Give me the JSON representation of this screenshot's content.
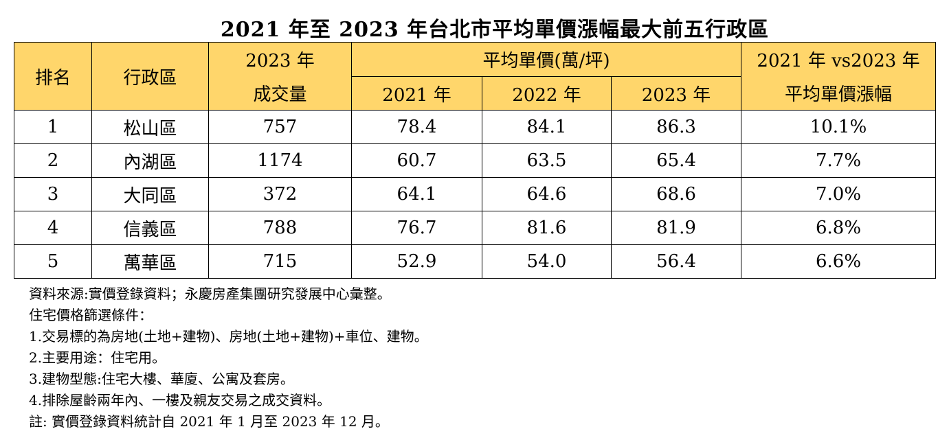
{
  "title": "2021 年至 2023 年台北市平均單價漲幅最大前五行政區",
  "headers": {
    "rank": "排名",
    "district": "行政區",
    "volume_line1": "2023 年",
    "volume_line2": "成交量",
    "price_group": "平均單價(萬/坪)",
    "year_2021": "2021 年",
    "year_2022": "2022 年",
    "year_2023": "2023 年",
    "growth_line1": "2021 年 vs2023 年",
    "growth_line2": "平均單價漲幅"
  },
  "rows": [
    {
      "rank": "1",
      "district": "松山區",
      "volume": "757",
      "p2021": "78.4",
      "p2022": "84.1",
      "p2023": "86.3",
      "growth": "10.1%"
    },
    {
      "rank": "2",
      "district": "內湖區",
      "volume": "1174",
      "p2021": "60.7",
      "p2022": "63.5",
      "p2023": "65.4",
      "growth": "7.7%"
    },
    {
      "rank": "3",
      "district": "大同區",
      "volume": "372",
      "p2021": "64.1",
      "p2022": "64.6",
      "p2023": "68.6",
      "growth": "7.0%"
    },
    {
      "rank": "4",
      "district": "信義區",
      "volume": "788",
      "p2021": "76.7",
      "p2022": "81.6",
      "p2023": "81.9",
      "growth": "6.8%"
    },
    {
      "rank": "5",
      "district": "萬華區",
      "volume": "715",
      "p2021": "52.9",
      "p2022": "54.0",
      "p2023": "56.4",
      "growth": "6.6%"
    }
  ],
  "notes": [
    "資料來源:實價登錄資料；永慶房產集團研究發展中心彙整。",
    "住宅價格篩選條件：",
    "1.交易標的為房地(土地+建物)、房地(土地+建物)+車位、建物。",
    "2.主要用途：住宅用。",
    "3.建物型態:住宅大樓、華廈、公寓及套房。",
    "4.排除屋齡兩年內、一樓及親友交易之成交資料。",
    "註: 實價登錄資料統計自 2021 年 1 月至 2023 年 12 月。"
  ],
  "colors": {
    "header_bg": "#ffd66b",
    "border": "#000000"
  }
}
